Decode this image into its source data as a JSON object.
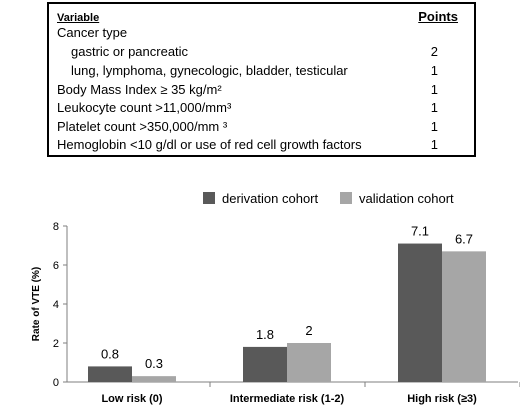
{
  "score_table": {
    "header_variable": "Variable",
    "header_points": "Points",
    "rows": [
      {
        "variable": "Cancer type",
        "points": "",
        "indent": 0
      },
      {
        "variable": "gastric or pancreatic",
        "points": "2",
        "indent": 1
      },
      {
        "variable": "lung, lymphoma, gynecologic,  bladder, testicular",
        "points": "1",
        "indent": 1
      },
      {
        "variable": "Body Mass Index  ≥ 35 kg/m²",
        "points": "1",
        "indent": 0
      },
      {
        "variable": "Leukocyte count >11,000/mm³",
        "points": "1",
        "indent": 0
      },
      {
        "variable": "Platelet count >350,000/mm ³",
        "points": "1",
        "indent": 0
      },
      {
        "variable": "Hemoglobin <10 g/dl or use of red cell growth factors",
        "points": "1",
        "indent": 0
      }
    ]
  },
  "chart_data": {
    "type": "bar",
    "categories": [
      "Low risk (0)",
      "Intermediate risk (1-2)",
      "High risk (≥3)"
    ],
    "series": [
      {
        "name": "derivation cohort",
        "color": "#595959",
        "values": [
          0.8,
          1.8,
          7.1
        ],
        "labels": [
          "0.8",
          "1.8",
          "7.1"
        ]
      },
      {
        "name": "validation cohort",
        "color": "#a6a6a6",
        "values": [
          0.3,
          2,
          6.7
        ],
        "labels": [
          "0.3",
          "2",
          "6.7"
        ]
      }
    ],
    "ylabel": "Rate of VTE (%)",
    "ylim": [
      0,
      8
    ],
    "yticks": [
      0,
      2,
      4,
      6,
      8
    ],
    "ytick_labels": [
      "0",
      "2",
      "4",
      "6",
      "8"
    ],
    "legend_position": "top-center",
    "grid": false
  }
}
